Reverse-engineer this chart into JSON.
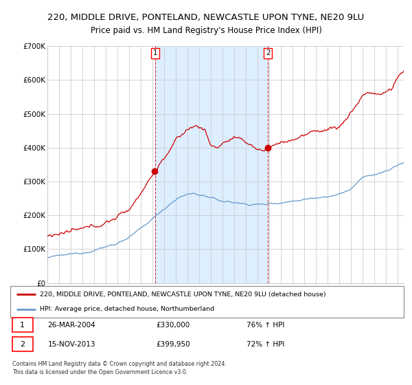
{
  "title": "220, MIDDLE DRIVE, PONTELAND, NEWCASTLE UPON TYNE, NE20 9LU",
  "subtitle": "Price paid vs. HM Land Registry's House Price Index (HPI)",
  "red_label": "220, MIDDLE DRIVE, PONTELAND, NEWCASTLE UPON TYNE, NE20 9LU (detached house)",
  "blue_label": "HPI: Average price, detached house, Northumberland",
  "annotation1_date": "26-MAR-2004",
  "annotation1_price": 330000,
  "annotation1_hpi": "76% ↑ HPI",
  "annotation2_date": "15-NOV-2013",
  "annotation2_price": 399950,
  "annotation2_hpi": "72% ↑ HPI",
  "sale1_year": 2004.23,
  "sale2_year": 2013.87,
  "ylim": [
    0,
    700000
  ],
  "yticks": [
    0,
    100000,
    200000,
    300000,
    400000,
    500000,
    600000,
    700000
  ],
  "ytick_labels": [
    "£0",
    "£100K",
    "£200K",
    "£300K",
    "£400K",
    "£500K",
    "£600K",
    "£700K"
  ],
  "xlim_start": 1995.0,
  "xlim_end": 2025.5,
  "red_color": "#cc0000",
  "blue_color": "#6699cc",
  "bg_color": "#ddeeff",
  "grid_color": "#cccccc",
  "copyright_text": "Contains HM Land Registry data © Crown copyright and database right 2024.\nThis data is licensed under the Open Government Licence v3.0.",
  "title_fontsize": 9.5,
  "subtitle_fontsize": 8.5
}
